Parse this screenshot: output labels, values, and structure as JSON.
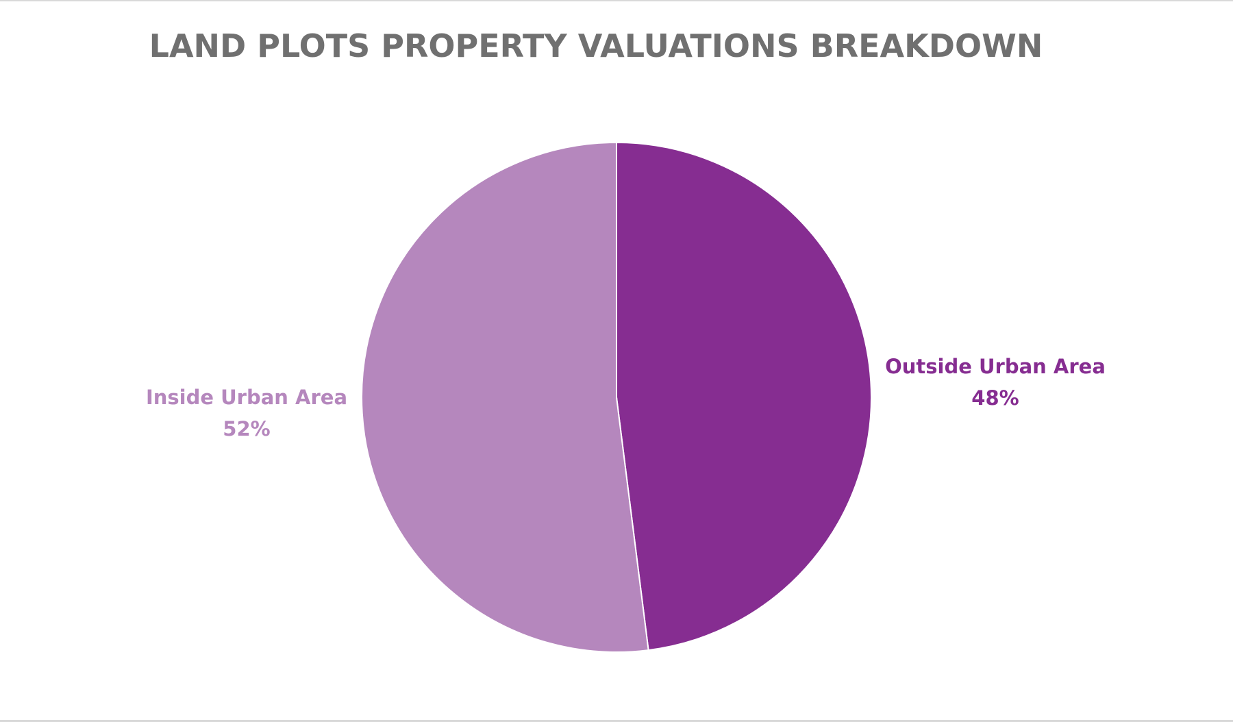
{
  "chart_data": {
    "type": "pie",
    "title": "LAND PLOTS PROPERTY VALUATIONS BREAKDOWN",
    "categories": [
      "Outside Urban Area",
      "Inside Urban Area"
    ],
    "values": [
      48,
      52
    ],
    "value_labels": [
      "48%",
      "52%"
    ],
    "colors": [
      "#862d91",
      "#b587bd"
    ],
    "legend": "none",
    "data_labels": "outside"
  }
}
